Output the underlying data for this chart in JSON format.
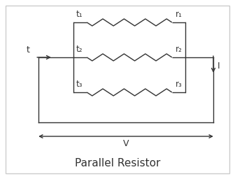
{
  "title": "Parallel Resistor",
  "title_fontsize": 11,
  "background_color": "#ffffff",
  "border_color": "#cccccc",
  "line_color": "#333333",
  "text_color": "#333333",
  "fig_width": 3.36,
  "fig_height": 2.56,
  "dpi": 100,
  "labels": {
    "t": "t",
    "t1": "t₁",
    "t2": "t₂",
    "t3": "t₃",
    "r1": "r₁",
    "r2": "r₂",
    "r3": "r₃",
    "I": "I",
    "V": "V"
  },
  "xlim": [
    0,
    336
  ],
  "ylim": [
    0,
    256
  ]
}
